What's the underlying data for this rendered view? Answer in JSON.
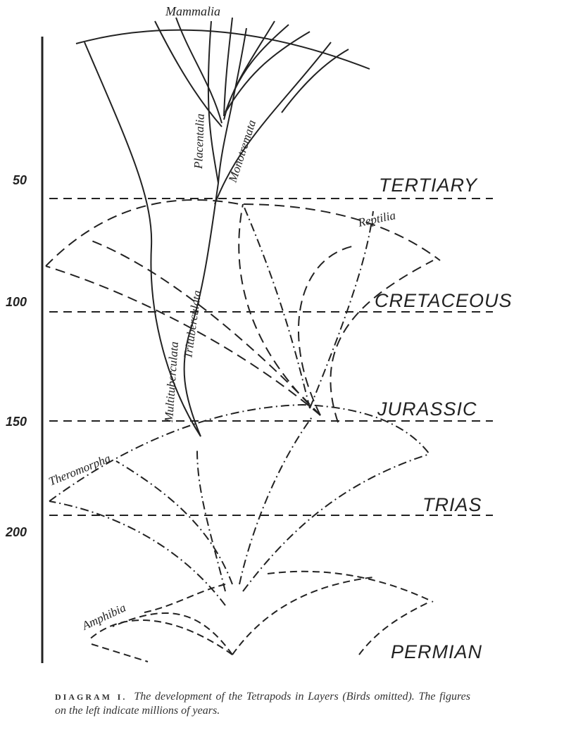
{
  "diagram": {
    "axis_ticks": [
      "50",
      "100",
      "150",
      "200"
    ],
    "eras": [
      "TERTIARY",
      "CRETACEOUS",
      "JURASSIC",
      "TRIAS",
      "PERMIAN"
    ],
    "groups": {
      "mammalia": "Mammalia",
      "placentalia": "Placentalia",
      "monotremata": "Monotremata",
      "trituberculata": "Trituberculata",
      "multituberculata": "Multituberculata",
      "reptilia": "Reptilia",
      "theromorpha": "Theromorpha",
      "amphibia": "Amphibia"
    }
  },
  "caption": {
    "label": "DIAGRAM I.",
    "text": "The development of the Tetrapods in Layers (Birds omitted). The figures on the left indicate millions of years."
  }
}
